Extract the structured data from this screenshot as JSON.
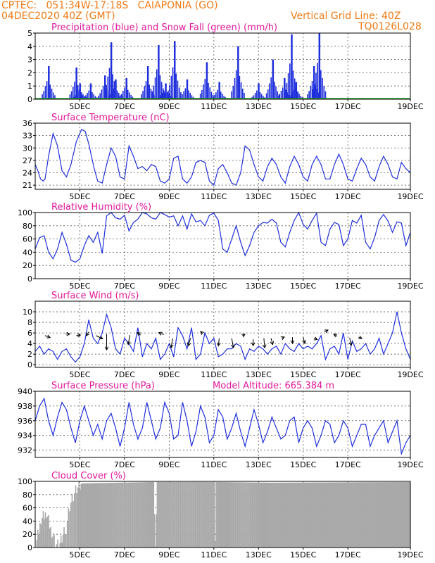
{
  "header": {
    "line1": "CPTEC:   051:34W-17:18S   CAIAPONIA (GO)",
    "line2": "04DEC2020 40Z (GMT)",
    "vgrid": "Vertical Grid Line: 40Z",
    "code": "TQ0126L028"
  },
  "colors": {
    "header": "#ee7a14",
    "title": "#e0189c",
    "line": "#1f2fdc",
    "snow": "#2aa02a",
    "cloud": "#a9a9a9"
  },
  "chart_data": [
    {
      "type": "bar",
      "title": "Precipitation (blue) and Snow Fall (green) (mm/h)",
      "xticks": [
        "5DEC",
        "7DEC",
        "9DEC",
        "11DEC",
        "13DEC",
        "15DEC",
        "17DEC",
        "19DEC"
      ],
      "yticks": [
        0,
        1,
        2,
        3,
        4,
        5
      ],
      "ylim": [
        0,
        5
      ],
      "grid": true,
      "series": [
        {
          "name": "Precipitation",
          "events": [
            [
              0.75,
              2.5
            ],
            [
              2.3,
              2.4
            ],
            [
              2.5,
              1.2
            ],
            [
              3.1,
              1.2
            ],
            [
              3.9,
              1.8
            ],
            [
              4.25,
              4.3
            ],
            [
              4.5,
              1.5
            ],
            [
              5.1,
              1.6
            ],
            [
              6.3,
              2.5
            ],
            [
              6.9,
              4.1
            ],
            [
              7.3,
              1.2
            ],
            [
              7.8,
              4.4
            ],
            [
              8.5,
              1.5
            ],
            [
              9.6,
              2.8
            ],
            [
              10.3,
              1.3
            ],
            [
              11.35,
              4.0
            ],
            [
              12.5,
              1.2
            ],
            [
              13.3,
              3.0
            ],
            [
              13.95,
              1.6
            ],
            [
              14.35,
              4.9
            ],
            [
              14.6,
              1.3
            ],
            [
              15.6,
              2.5
            ],
            [
              15.9,
              5.0
            ]
          ]
        },
        {
          "name": "Snow Fall",
          "values": []
        }
      ]
    },
    {
      "type": "line",
      "title": "Surface Temperature (nC)",
      "xticks": [
        "5DEC",
        "7DEC",
        "9DEC",
        "11DEC",
        "13DEC",
        "15DEC",
        "17DEC",
        "19DEC"
      ],
      "yticks": [
        21,
        24,
        27,
        30,
        33,
        36
      ],
      "ylim": [
        20,
        36
      ],
      "grid": true,
      "x": [
        0,
        0.15,
        0.3,
        0.45,
        0.55,
        0.75,
        1.0,
        1.25,
        1.5,
        1.75,
        2.0,
        2.3,
        2.6,
        2.8,
        3.0,
        3.3,
        3.5,
        3.75,
        4.0,
        4.25,
        4.5,
        4.75,
        5.0,
        5.25,
        5.5,
        5.75,
        6.0,
        6.25,
        6.5,
        6.75,
        7.0,
        7.25,
        7.5,
        7.75,
        8.0,
        8.25,
        8.5,
        8.75,
        9.0,
        9.25,
        9.5,
        9.75,
        10.0,
        10.25,
        10.5,
        10.75,
        11.0,
        11.25,
        11.5,
        11.75,
        12.0,
        12.25,
        12.5,
        12.75,
        13.0,
        13.25,
        13.5,
        13.75,
        14.0,
        14.25,
        14.5,
        14.75,
        15.0,
        15.25,
        15.5,
        15.75,
        16.0,
        16.25,
        16.5,
        16.75,
        17.0,
        17.25,
        17.5,
        17.75,
        18.0,
        18.25,
        18.5,
        18.75,
        19.0,
        19.25,
        19.5,
        19.75,
        20.0,
        20.25,
        20.5,
        20.75,
        21.0
      ],
      "values": [
        26,
        24.5,
        22.5,
        22,
        22.5,
        28,
        33.5,
        30.5,
        24.5,
        23,
        26,
        31.5,
        34.5,
        34,
        31,
        25,
        22,
        21.5,
        26,
        30,
        28,
        23,
        22.5,
        30.5,
        28,
        25,
        25.5,
        24.5,
        26,
        25.5,
        22,
        21.5,
        22.5,
        27.5,
        28,
        22.5,
        21.5,
        23,
        26.5,
        27,
        26.5,
        22,
        21,
        25,
        26,
        24,
        21.5,
        21,
        24,
        30.5,
        29.5,
        26,
        23,
        22,
        25.5,
        27.5,
        26,
        23,
        21.5,
        25.5,
        28,
        26,
        23,
        22,
        26,
        28,
        26,
        22.5,
        22.5,
        26,
        28.5,
        26,
        22.5,
        22,
        25,
        27.5,
        26,
        23,
        22,
        25.5,
        28,
        26,
        23,
        22.5,
        26.5,
        25,
        24
      ]
    },
    {
      "type": "line",
      "title": "Relative Humidity (%)",
      "xticks": [
        "5DEC",
        "7DEC",
        "9DEC",
        "11DEC",
        "13DEC",
        "15DEC",
        "17DEC",
        "19DEC"
      ],
      "yticks": [
        0,
        20,
        40,
        60,
        80,
        100
      ],
      "ylim": [
        0,
        100
      ],
      "grid": true,
      "x": [
        0,
        0.25,
        0.5,
        0.75,
        1.0,
        1.25,
        1.5,
        1.75,
        2.0,
        2.25,
        2.5,
        2.75,
        3.0,
        3.25,
        3.5,
        3.75,
        4.0,
        4.25,
        4.5,
        4.75,
        5.0,
        5.25,
        5.5,
        5.75,
        6.0,
        6.25,
        6.5,
        6.75,
        7.0,
        7.25,
        7.5,
        7.75,
        8.0,
        8.25,
        8.5,
        8.75,
        9.0,
        9.25,
        9.5,
        9.75,
        10.0,
        10.25,
        10.5,
        10.75,
        11.0,
        11.25,
        11.5,
        11.75,
        12.0,
        12.25,
        12.5,
        12.75,
        13.0,
        13.25,
        13.5,
        13.75,
        14.0,
        14.25,
        14.5,
        14.75,
        15.0,
        15.25,
        15.5,
        15.75,
        16.0,
        16.25,
        16.5,
        16.75,
        17.0,
        17.25,
        17.5,
        17.75,
        18.0,
        18.25,
        18.5,
        18.75,
        19.0,
        19.25,
        19.5,
        19.75,
        20.0,
        20.25,
        20.5,
        20.75,
        21.0
      ],
      "values": [
        45,
        62,
        65,
        40,
        30,
        45,
        70,
        52,
        28,
        25,
        30,
        50,
        65,
        55,
        70,
        38,
        95,
        100,
        92,
        90,
        96,
        72,
        85,
        90,
        100,
        98,
        92,
        90,
        100,
        97,
        93,
        95,
        80,
        95,
        75,
        98,
        86,
        88,
        80,
        96,
        99,
        88,
        45,
        40,
        60,
        80,
        55,
        35,
        50,
        70,
        80,
        85,
        84,
        90,
        84,
        55,
        48,
        70,
        88,
        100,
        82,
        75,
        88,
        99,
        55,
        50,
        75,
        85,
        82,
        50,
        60,
        88,
        84,
        96,
        55,
        45,
        62,
        88,
        97,
        87,
        70,
        86,
        84,
        50,
        70
      ]
    },
    {
      "type": "line",
      "title": "Surface Wind (m/s)",
      "xticks": [
        "5DEC",
        "7DEC",
        "9DEC",
        "11DEC",
        "13DEC",
        "15DEC",
        "17DEC",
        "19DEC"
      ],
      "yticks": [
        0,
        2,
        4,
        6,
        8,
        10
      ],
      "ylim": [
        -0.5,
        12
      ],
      "grid": true,
      "x": [
        0,
        0.25,
        0.5,
        0.75,
        1.0,
        1.25,
        1.5,
        1.75,
        2.0,
        2.25,
        2.5,
        2.75,
        3.0,
        3.25,
        3.5,
        3.75,
        4.0,
        4.25,
        4.5,
        4.75,
        5.0,
        5.25,
        5.5,
        5.75,
        6.0,
        6.25,
        6.5,
        6.75,
        7.0,
        7.25,
        7.5,
        7.75,
        8.0,
        8.25,
        8.5,
        8.75,
        9.0,
        9.25,
        9.5,
        9.75,
        10.0,
        10.25,
        10.5,
        10.75,
        11.0,
        11.25,
        11.5,
        11.75,
        12.0,
        12.25,
        12.5,
        12.75,
        13.0,
        13.25,
        13.5,
        13.75,
        14.0,
        14.25,
        14.5,
        14.75,
        15.0,
        15.25,
        15.5,
        15.75,
        16.0,
        16.25,
        16.5,
        16.75,
        17.0,
        17.25,
        17.5,
        17.75,
        18.0,
        18.25,
        18.5,
        18.75,
        19.0,
        19.25,
        19.5,
        19.75,
        20.0,
        20.25,
        20.5,
        20.75,
        21.0
      ],
      "values": [
        2.5,
        3.5,
        2,
        3,
        2.5,
        1,
        2.5,
        3,
        1.5,
        0.5,
        1.5,
        4,
        8.5,
        5,
        4,
        6,
        9.5,
        7,
        3,
        2,
        5,
        4,
        2.5,
        7,
        1.5,
        4,
        3,
        5,
        1,
        2,
        4,
        1.5,
        7,
        5.5,
        3,
        7,
        1,
        2,
        6,
        4,
        5,
        1.5,
        2,
        3,
        3,
        4,
        3.5,
        1,
        3,
        2.5,
        3.5,
        3,
        2,
        3,
        3.5,
        2,
        4,
        3,
        2.5,
        4,
        3,
        3.5,
        3,
        4,
        5.5,
        1,
        3,
        3.5,
        2,
        6,
        1,
        4.5,
        2.5,
        3,
        4,
        2,
        3,
        5,
        2,
        4,
        6,
        10,
        6,
        3,
        1
      ]
    },
    {
      "type": "line",
      "title": "Surface Pressure (hPa)",
      "annotation": "Model Altitude: 665.384 m",
      "xticks": [
        "5DEC",
        "7DEC",
        "9DEC",
        "11DEC",
        "13DEC",
        "15DEC",
        "17DEC",
        "19DEC"
      ],
      "yticks": [
        932,
        934,
        936,
        938,
        940
      ],
      "ylim": [
        931,
        940
      ],
      "grid": true,
      "x": [
        0,
        0.25,
        0.5,
        0.75,
        1.0,
        1.25,
        1.5,
        1.75,
        2.0,
        2.25,
        2.5,
        2.75,
        3.0,
        3.25,
        3.5,
        3.75,
        4.0,
        4.25,
        4.5,
        4.75,
        5.0,
        5.25,
        5.5,
        5.75,
        6.0,
        6.25,
        6.5,
        6.75,
        7.0,
        7.25,
        7.5,
        7.75,
        8.0,
        8.25,
        8.5,
        8.75,
        9.0,
        9.25,
        9.5,
        9.75,
        10.0,
        10.25,
        10.5,
        10.75,
        11.0,
        11.25,
        11.5,
        11.75,
        12.0,
        12.25,
        12.5,
        12.75,
        13.0,
        13.25,
        13.5,
        13.75,
        14.0,
        14.25,
        14.5,
        14.75,
        15.0,
        15.25,
        15.5,
        15.75,
        16.0,
        16.25,
        16.5,
        16.75,
        17.0,
        17.25,
        17.5,
        17.75,
        18.0,
        18.25,
        18.5,
        18.75,
        19.0,
        19.25,
        19.5,
        19.75,
        20.0,
        20.25,
        20.5,
        20.75,
        21.0
      ],
      "values": [
        936,
        938,
        939,
        936,
        934,
        936.5,
        938.5,
        937.5,
        935,
        933,
        936,
        938,
        936,
        934,
        935.5,
        933.5,
        936,
        937,
        935,
        932.5,
        935,
        938.5,
        935.5,
        933.5,
        935,
        938.5,
        936,
        933.5,
        935,
        938.5,
        937,
        933.5,
        934,
        938.5,
        936,
        932.5,
        934.5,
        938,
        936.5,
        933,
        934,
        937.5,
        936.5,
        933.5,
        935,
        937,
        934.5,
        932.5,
        935,
        937.5,
        935.5,
        933,
        934.5,
        936.5,
        935,
        933.5,
        934,
        936,
        936.5,
        933,
        935,
        936,
        935,
        932.5,
        934,
        936,
        935.5,
        933,
        934,
        936,
        935,
        932.5,
        934,
        935.5,
        935.5,
        932.5,
        934,
        935,
        936,
        933,
        934.5,
        936,
        931.5,
        933,
        934
      ]
    },
    {
      "type": "bar",
      "title": "Cloud Cover (%)",
      "xticks": [
        "5DEC",
        "7DEC",
        "9DEC",
        "11DEC",
        "13DEC",
        "15DEC",
        "17DEC",
        "19DEC"
      ],
      "yticks": [
        0,
        20,
        40,
        60,
        80,
        100
      ],
      "ylim": [
        0,
        100
      ],
      "grid": true,
      "segments": [
        [
          0,
          5
        ],
        [
          0.3,
          45
        ],
        [
          0.6,
          55
        ],
        [
          0.9,
          25
        ],
        [
          1.1,
          8
        ],
        [
          1.3,
          5
        ],
        [
          1.7,
          30
        ],
        [
          1.9,
          65
        ],
        [
          2.1,
          80
        ],
        [
          2.3,
          92
        ],
        [
          2.6,
          97
        ],
        [
          6.6,
          99
        ],
        [
          6.7,
          2
        ],
        [
          6.8,
          99
        ],
        [
          10.0,
          99
        ],
        [
          10.05,
          10
        ],
        [
          10.1,
          99
        ],
        [
          13.2,
          98
        ],
        [
          21.0,
          99
        ]
      ]
    }
  ]
}
